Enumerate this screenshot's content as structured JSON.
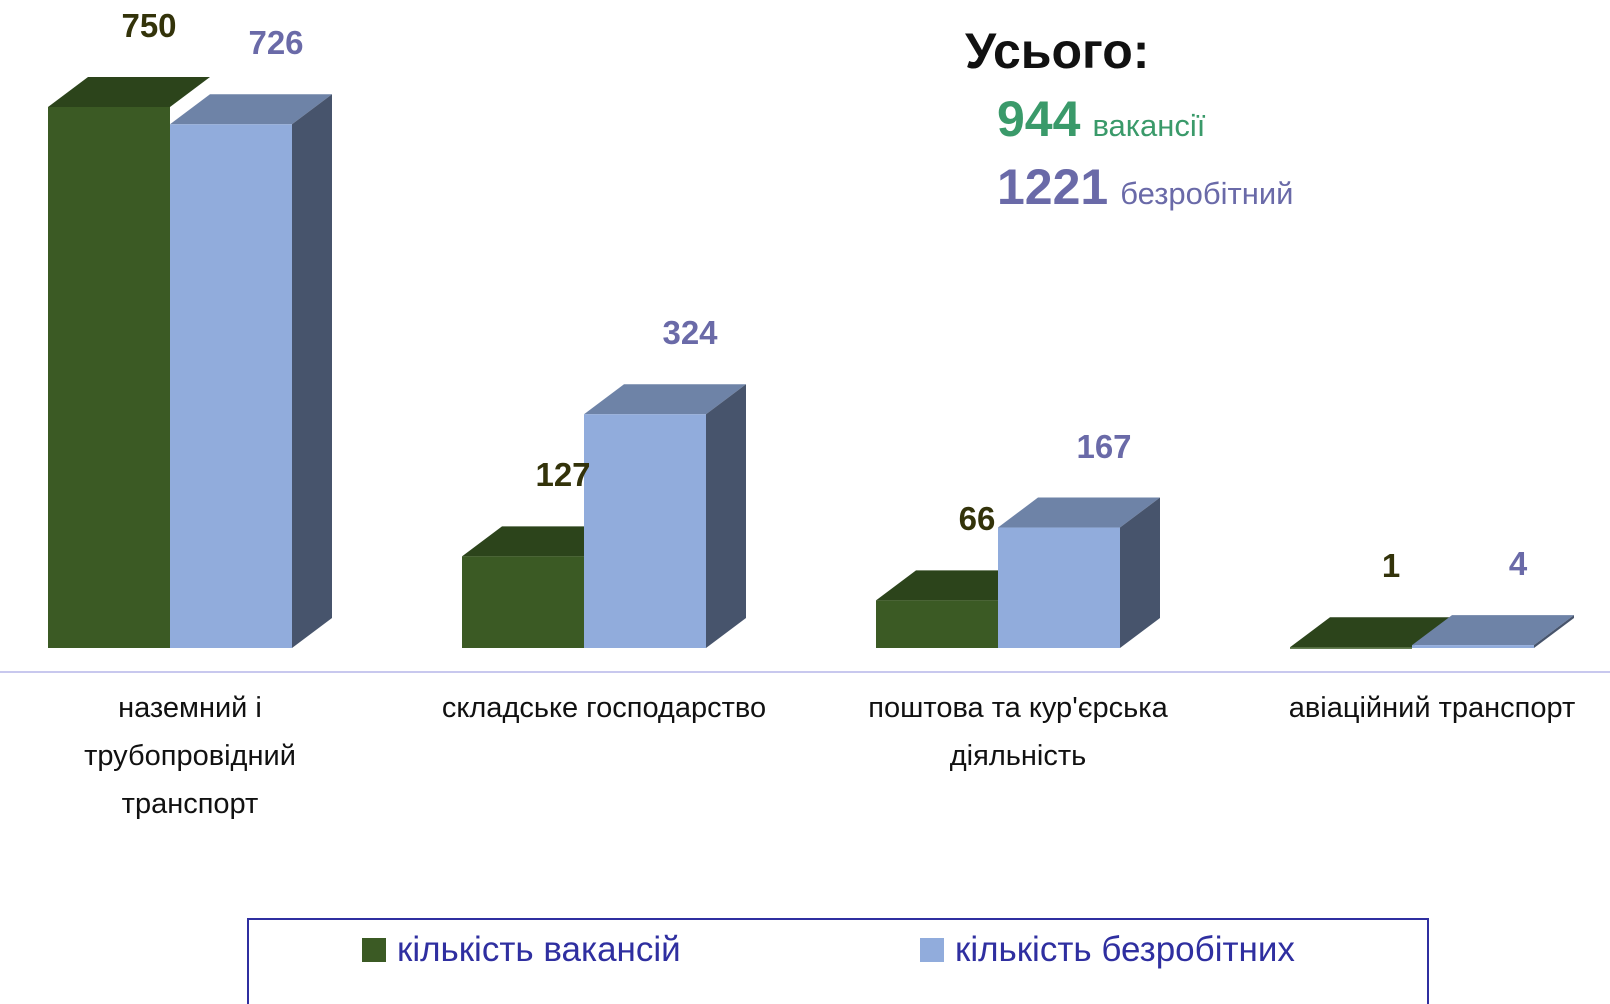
{
  "chart_data": {
    "type": "bar3d",
    "categories": [
      "наземний і трубопровідний транспорт",
      "складське господарство",
      "поштова та кур'єрська діяльність",
      "авіаційний транспорт"
    ],
    "series": [
      {
        "name": "кількість вакансій",
        "color": "#3b5a24",
        "values": [
          750,
          127,
          66,
          1
        ]
      },
      {
        "name": "кількість безробітних",
        "color": "#91acdc",
        "values": [
          726,
          324,
          167,
          4
        ]
      }
    ],
    "annotations": {
      "title": "Усього:",
      "totals": [
        {
          "value": 944,
          "label": "вакансії"
        },
        {
          "value": 1221,
          "label": "безробітний"
        }
      ]
    },
    "legend": "bottom"
  }
}
